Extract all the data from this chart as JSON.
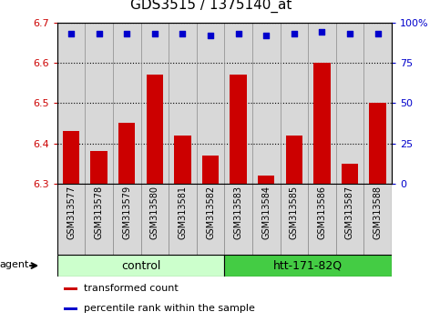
{
  "title": "GDS3515 / 1375140_at",
  "samples": [
    "GSM313577",
    "GSM313578",
    "GSM313579",
    "GSM313580",
    "GSM313581",
    "GSM313582",
    "GSM313583",
    "GSM313584",
    "GSM313585",
    "GSM313586",
    "GSM313587",
    "GSM313588"
  ],
  "bar_values": [
    6.43,
    6.38,
    6.45,
    6.57,
    6.42,
    6.37,
    6.57,
    6.32,
    6.42,
    6.6,
    6.35,
    6.5
  ],
  "percentile_values": [
    93,
    93,
    93,
    93,
    93,
    92,
    93,
    92,
    93,
    94,
    93,
    93
  ],
  "bar_color": "#cc0000",
  "percentile_color": "#0000cc",
  "ylim_left": [
    6.3,
    6.7
  ],
  "ylim_right": [
    0,
    100
  ],
  "right_ticks": [
    0,
    25,
    50,
    75,
    100
  ],
  "right_tick_labels": [
    "0",
    "25",
    "50",
    "75",
    "100%"
  ],
  "left_ticks": [
    6.3,
    6.4,
    6.5,
    6.6,
    6.7
  ],
  "groups": [
    {
      "label": "control",
      "start": 0,
      "end": 6,
      "color": "#ccffcc"
    },
    {
      "label": "htt-171-82Q",
      "start": 6,
      "end": 12,
      "color": "#44cc44"
    }
  ],
  "agent_label": "agent",
  "legend": [
    {
      "color": "#cc0000",
      "label": "transformed count"
    },
    {
      "color": "#0000cc",
      "label": "percentile rank within the sample"
    }
  ],
  "bar_width": 0.6,
  "cell_bg_color": "#d8d8d8",
  "plot_bg": "#ffffff",
  "title_fontsize": 11,
  "label_fontsize": 7,
  "tick_fontsize": 8
}
